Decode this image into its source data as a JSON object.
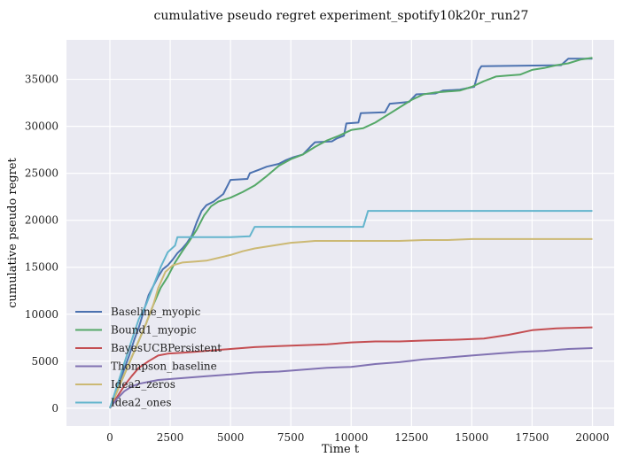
{
  "chart_data": {
    "type": "line",
    "title": "cumulative pseudo regret experiment_spotify10k20r_run27",
    "xlabel": "Time t",
    "ylabel": "cumulative pseudo regret",
    "xlim": [
      -1800,
      20900
    ],
    "ylim": [
      -1900,
      39200
    ],
    "xticks": [
      0,
      2500,
      5000,
      7500,
      10000,
      12500,
      15000,
      17500,
      20000
    ],
    "yticks": [
      0,
      5000,
      10000,
      15000,
      20000,
      25000,
      30000,
      35000
    ],
    "grid": true,
    "legend_position": "lower-left",
    "plot_background": "#eaeaf2",
    "series": [
      {
        "name": "Baseline_myopic",
        "color": "#4c72b0",
        "points": [
          [
            0,
            0
          ],
          [
            200,
            1500
          ],
          [
            400,
            2800
          ],
          [
            600,
            4200
          ],
          [
            800,
            5600
          ],
          [
            1000,
            7200
          ],
          [
            1200,
            8600
          ],
          [
            1400,
            10300
          ],
          [
            1600,
            12000
          ],
          [
            1800,
            13000
          ],
          [
            2000,
            14000
          ],
          [
            2200,
            14800
          ],
          [
            2400,
            15200
          ],
          [
            2600,
            15800
          ],
          [
            2800,
            16500
          ],
          [
            3000,
            17000
          ],
          [
            3200,
            17600
          ],
          [
            3400,
            18400
          ],
          [
            3600,
            19800
          ],
          [
            3800,
            21000
          ],
          [
            4000,
            21600
          ],
          [
            4300,
            22000
          ],
          [
            4700,
            22800
          ],
          [
            5000,
            24300
          ],
          [
            5700,
            24400
          ],
          [
            5800,
            25000
          ],
          [
            6200,
            25400
          ],
          [
            6500,
            25700
          ],
          [
            7000,
            26000
          ],
          [
            7300,
            26400
          ],
          [
            7600,
            26700
          ],
          [
            8000,
            27000
          ],
          [
            8300,
            27800
          ],
          [
            8500,
            28300
          ],
          [
            9200,
            28400
          ],
          [
            9400,
            28700
          ],
          [
            9700,
            29000
          ],
          [
            9800,
            30300
          ],
          [
            10300,
            30400
          ],
          [
            10400,
            31400
          ],
          [
            11400,
            31500
          ],
          [
            11600,
            32400
          ],
          [
            12000,
            32500
          ],
          [
            12400,
            32600
          ],
          [
            12700,
            33400
          ],
          [
            13500,
            33500
          ],
          [
            13800,
            33800
          ],
          [
            14500,
            33900
          ],
          [
            15100,
            34200
          ],
          [
            15300,
            36000
          ],
          [
            15400,
            36400
          ],
          [
            18700,
            36500
          ],
          [
            19000,
            37200
          ],
          [
            20000,
            37200
          ]
        ]
      },
      {
        "name": "Bound1_myopic",
        "color": "#55a868",
        "points": [
          [
            0,
            0
          ],
          [
            300,
            1800
          ],
          [
            600,
            3600
          ],
          [
            900,
            5400
          ],
          [
            1200,
            7200
          ],
          [
            1500,
            9000
          ],
          [
            1800,
            11000
          ],
          [
            2100,
            12800
          ],
          [
            2400,
            14000
          ],
          [
            2700,
            15500
          ],
          [
            3000,
            16700
          ],
          [
            3300,
            17800
          ],
          [
            3600,
            19000
          ],
          [
            3900,
            20500
          ],
          [
            4200,
            21500
          ],
          [
            4500,
            22000
          ],
          [
            5000,
            22400
          ],
          [
            5500,
            23000
          ],
          [
            6000,
            23700
          ],
          [
            6500,
            24700
          ],
          [
            7000,
            25800
          ],
          [
            7500,
            26500
          ],
          [
            8000,
            27000
          ],
          [
            8500,
            27800
          ],
          [
            9000,
            28500
          ],
          [
            9500,
            29000
          ],
          [
            10000,
            29600
          ],
          [
            10500,
            29800
          ],
          [
            11000,
            30400
          ],
          [
            11500,
            31200
          ],
          [
            12000,
            32000
          ],
          [
            12500,
            32800
          ],
          [
            13000,
            33400
          ],
          [
            13500,
            33600
          ],
          [
            14000,
            33700
          ],
          [
            14500,
            33800
          ],
          [
            15000,
            34200
          ],
          [
            15500,
            34800
          ],
          [
            16000,
            35300
          ],
          [
            16500,
            35400
          ],
          [
            17000,
            35500
          ],
          [
            17500,
            36000
          ],
          [
            18000,
            36200
          ],
          [
            18500,
            36500
          ],
          [
            19000,
            36700
          ],
          [
            19500,
            37100
          ],
          [
            20000,
            37300
          ]
        ]
      },
      {
        "name": "BayesUCBPersistent",
        "color": "#c44e52",
        "points": [
          [
            0,
            0
          ],
          [
            300,
            1200
          ],
          [
            600,
            2400
          ],
          [
            900,
            3400
          ],
          [
            1200,
            4300
          ],
          [
            1600,
            5000
          ],
          [
            2000,
            5600
          ],
          [
            2400,
            5800
          ],
          [
            3000,
            5900
          ],
          [
            3500,
            6000
          ],
          [
            4000,
            6100
          ],
          [
            5000,
            6300
          ],
          [
            6000,
            6500
          ],
          [
            7000,
            6600
          ],
          [
            8000,
            6700
          ],
          [
            9000,
            6800
          ],
          [
            10000,
            7000
          ],
          [
            11000,
            7100
          ],
          [
            12000,
            7100
          ],
          [
            13000,
            7200
          ],
          [
            14500,
            7300
          ],
          [
            15500,
            7400
          ],
          [
            16500,
            7800
          ],
          [
            17500,
            8300
          ],
          [
            18500,
            8500
          ],
          [
            20000,
            8600
          ]
        ]
      },
      {
        "name": "Thompson_baseline",
        "color": "#8172b2",
        "points": [
          [
            0,
            0
          ],
          [
            300,
            1000
          ],
          [
            600,
            1800
          ],
          [
            900,
            2300
          ],
          [
            1200,
            2600
          ],
          [
            1600,
            2800
          ],
          [
            2000,
            3000
          ],
          [
            3000,
            3200
          ],
          [
            4000,
            3400
          ],
          [
            5000,
            3600
          ],
          [
            6000,
            3800
          ],
          [
            7000,
            3900
          ],
          [
            8000,
            4100
          ],
          [
            9000,
            4300
          ],
          [
            10000,
            4400
          ],
          [
            11000,
            4700
          ],
          [
            12000,
            4900
          ],
          [
            13000,
            5200
          ],
          [
            14000,
            5400
          ],
          [
            15000,
            5600
          ],
          [
            16000,
            5800
          ],
          [
            17000,
            6000
          ],
          [
            18000,
            6100
          ],
          [
            19000,
            6300
          ],
          [
            20000,
            6400
          ]
        ]
      },
      {
        "name": "Idea2_zeros",
        "color": "#ccb974",
        "points": [
          [
            0,
            0
          ],
          [
            300,
            1800
          ],
          [
            600,
            3600
          ],
          [
            900,
            5400
          ],
          [
            1200,
            7200
          ],
          [
            1500,
            9000
          ],
          [
            1800,
            11000
          ],
          [
            2000,
            12800
          ],
          [
            2300,
            14500
          ],
          [
            2600,
            15200
          ],
          [
            3000,
            15500
          ],
          [
            3500,
            15600
          ],
          [
            4000,
            15700
          ],
          [
            4500,
            16000
          ],
          [
            5000,
            16300
          ],
          [
            5500,
            16700
          ],
          [
            6000,
            17000
          ],
          [
            6500,
            17200
          ],
          [
            7000,
            17400
          ],
          [
            7500,
            17600
          ],
          [
            8000,
            17700
          ],
          [
            8500,
            17800
          ],
          [
            9000,
            17800
          ],
          [
            10000,
            17800
          ],
          [
            11000,
            17800
          ],
          [
            12000,
            17800
          ],
          [
            13000,
            17900
          ],
          [
            14000,
            17900
          ],
          [
            15000,
            18000
          ],
          [
            16000,
            18000
          ],
          [
            17000,
            18000
          ],
          [
            18000,
            18000
          ],
          [
            19000,
            18000
          ],
          [
            20000,
            18000
          ]
        ]
      },
      {
        "name": "Idea2_ones",
        "color": "#64b5cd",
        "points": [
          [
            0,
            0
          ],
          [
            300,
            2400
          ],
          [
            600,
            4800
          ],
          [
            900,
            7200
          ],
          [
            1200,
            9500
          ],
          [
            1500,
            11000
          ],
          [
            1800,
            13000
          ],
          [
            2100,
            15000
          ],
          [
            2400,
            16600
          ],
          [
            2700,
            17300
          ],
          [
            2800,
            18200
          ],
          [
            5000,
            18200
          ],
          [
            5800,
            18300
          ],
          [
            6000,
            19300
          ],
          [
            10500,
            19300
          ],
          [
            10700,
            21000
          ],
          [
            20000,
            21000
          ]
        ]
      }
    ]
  }
}
